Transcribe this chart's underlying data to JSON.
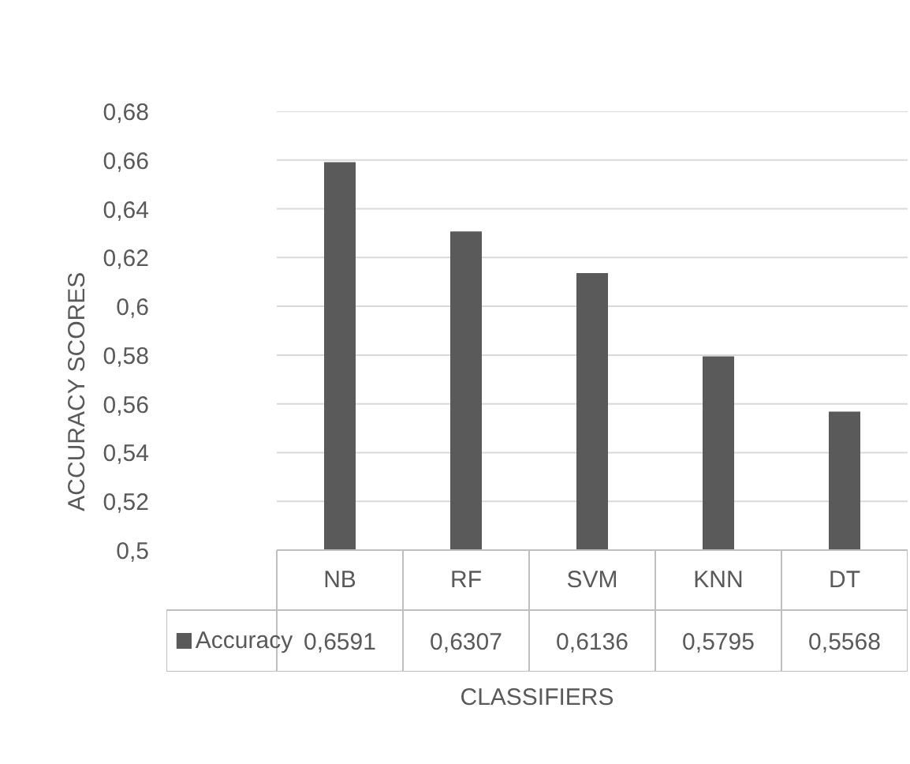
{
  "chart_data": {
    "type": "bar",
    "xlabel": "CLASSIFIERS",
    "ylabel": "ACCURACY SCORES",
    "categories": [
      "NB",
      "RF",
      "SVM",
      "KNN",
      "DT"
    ],
    "series": [
      {
        "name": "Accuracy",
        "color": "#5a5a5a",
        "values": [
          0.6591,
          0.6307,
          0.6136,
          0.5795,
          0.5568
        ],
        "value_labels": [
          "0,6591",
          "0,6307",
          "0,6136",
          "0,5795",
          "0,5568"
        ]
      }
    ],
    "ylim": [
      0.5,
      0.68
    ],
    "yticks": [
      {
        "value": 0.5,
        "label": "0,5"
      },
      {
        "value": 0.52,
        "label": "0,52"
      },
      {
        "value": 0.54,
        "label": "0,54"
      },
      {
        "value": 0.56,
        "label": "0,56"
      },
      {
        "value": 0.58,
        "label": "0,58"
      },
      {
        "value": 0.6,
        "label": "0,6"
      },
      {
        "value": 0.62,
        "label": "0,62"
      },
      {
        "value": 0.64,
        "label": "0,64"
      },
      {
        "value": 0.66,
        "label": "0,66"
      },
      {
        "value": 0.68,
        "label": "0,68"
      }
    ],
    "grid": "y",
    "legend": "bottom"
  }
}
